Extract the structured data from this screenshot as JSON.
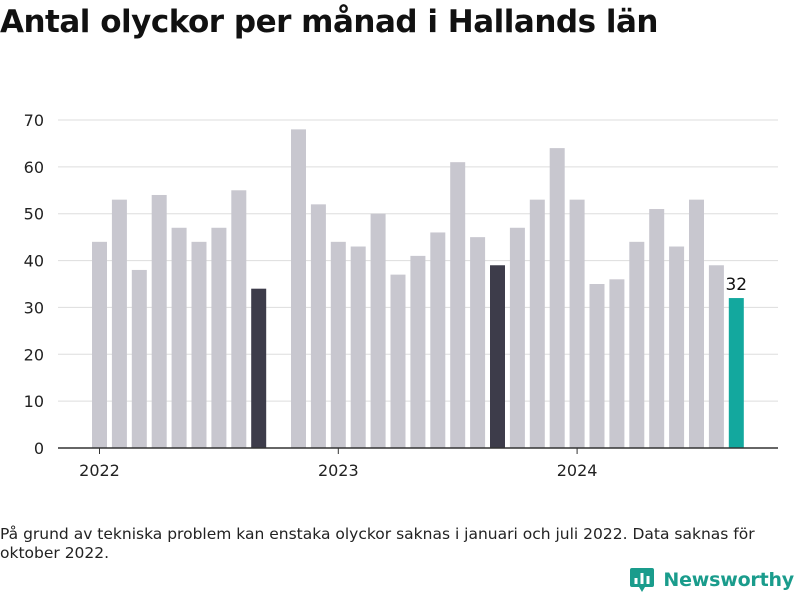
{
  "title": "Antal olyckor per månad i Hallands län",
  "footnote": "På grund av tekniska problem kan enstaka olyckor saknas i januari och juli 2022. Data saknas för oktober 2022.",
  "brand": {
    "name": "Newsworthy",
    "color": "#1a9c8c",
    "icon": "bar-chart-badge-icon"
  },
  "chart_data": {
    "type": "bar",
    "title": "Antal olyckor per månad i Hallands län",
    "xlabel": "",
    "ylabel": "",
    "ylim": [
      0,
      70
    ],
    "yticks": [
      0,
      10,
      20,
      30,
      40,
      50,
      60,
      70
    ],
    "grid": true,
    "year_labels": [
      "2022",
      "2023",
      "2024"
    ],
    "colors": {
      "default": "#c8c7cf",
      "highlight": "#3d3c4a",
      "latest": "#13a89e"
    },
    "points": [
      {
        "month": "2022-01",
        "value": 44,
        "style": "default"
      },
      {
        "month": "2022-02",
        "value": 53,
        "style": "default"
      },
      {
        "month": "2022-03",
        "value": 38,
        "style": "default"
      },
      {
        "month": "2022-04",
        "value": 54,
        "style": "default"
      },
      {
        "month": "2022-05",
        "value": 47,
        "style": "default"
      },
      {
        "month": "2022-06",
        "value": 44,
        "style": "default"
      },
      {
        "month": "2022-07",
        "value": 47,
        "style": "default"
      },
      {
        "month": "2022-08",
        "value": 55,
        "style": "default"
      },
      {
        "month": "2022-09",
        "value": 34,
        "style": "highlight"
      },
      {
        "month": "2022-10",
        "value": null,
        "style": "default"
      },
      {
        "month": "2022-11",
        "value": 68,
        "style": "default"
      },
      {
        "month": "2022-12",
        "value": 52,
        "style": "default"
      },
      {
        "month": "2023-01",
        "value": 44,
        "style": "default"
      },
      {
        "month": "2023-02",
        "value": 43,
        "style": "default"
      },
      {
        "month": "2023-03",
        "value": 50,
        "style": "default"
      },
      {
        "month": "2023-04",
        "value": 37,
        "style": "default"
      },
      {
        "month": "2023-05",
        "value": 41,
        "style": "default"
      },
      {
        "month": "2023-06",
        "value": 46,
        "style": "default"
      },
      {
        "month": "2023-07",
        "value": 61,
        "style": "default"
      },
      {
        "month": "2023-08",
        "value": 45,
        "style": "default"
      },
      {
        "month": "2023-09",
        "value": 39,
        "style": "highlight"
      },
      {
        "month": "2023-10",
        "value": 47,
        "style": "default"
      },
      {
        "month": "2023-11",
        "value": 53,
        "style": "default"
      },
      {
        "month": "2023-12",
        "value": 64,
        "style": "default"
      },
      {
        "month": "2024-01",
        "value": 53,
        "style": "default"
      },
      {
        "month": "2024-02",
        "value": 35,
        "style": "default"
      },
      {
        "month": "2024-03",
        "value": 36,
        "style": "default"
      },
      {
        "month": "2024-04",
        "value": 44,
        "style": "default"
      },
      {
        "month": "2024-05",
        "value": 51,
        "style": "default"
      },
      {
        "month": "2024-06",
        "value": 43,
        "style": "default"
      },
      {
        "month": "2024-07",
        "value": 53,
        "style": "default"
      },
      {
        "month": "2024-08",
        "value": 39,
        "style": "default"
      },
      {
        "month": "2024-09",
        "value": 32,
        "style": "latest",
        "label": "32"
      }
    ]
  }
}
